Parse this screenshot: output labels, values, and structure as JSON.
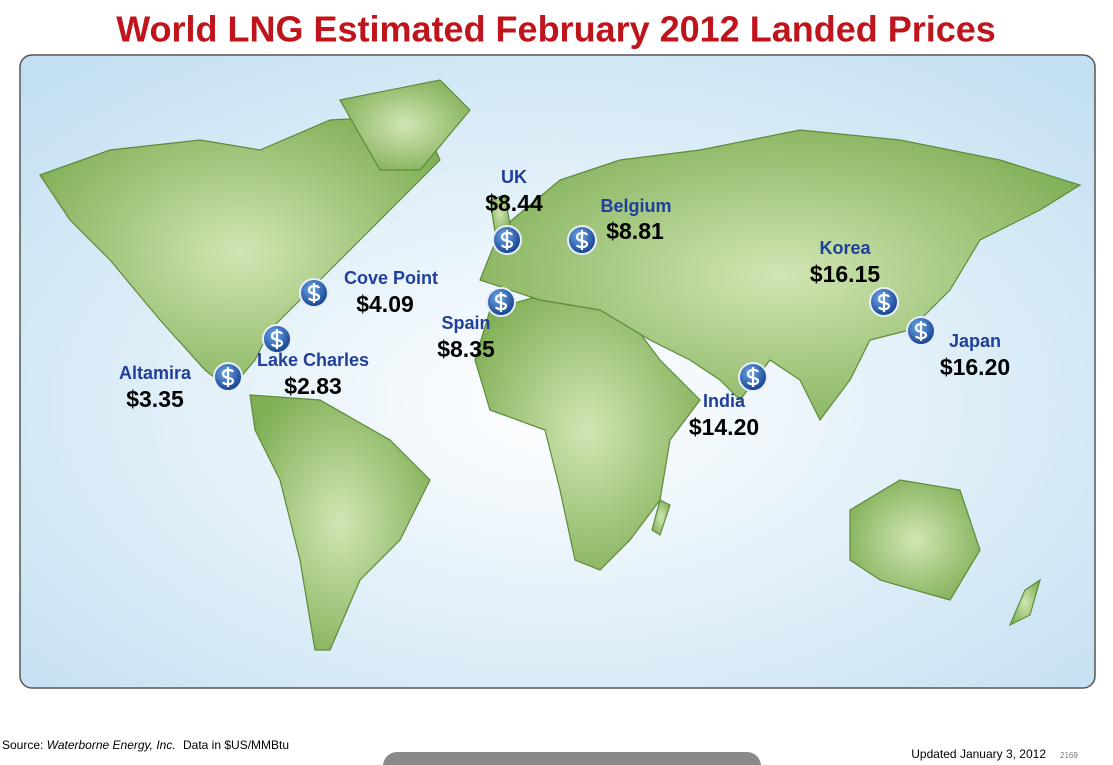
{
  "header": {
    "title": "World LNG Estimated February 2012 Landed Prices"
  },
  "locations": [
    {
      "name": "UK",
      "price": "$8.44"
    },
    {
      "name": "Belgium",
      "price": "$8.81"
    },
    {
      "name": "Cove Point",
      "price": "$4.09"
    },
    {
      "name": "Spain",
      "price": "$8.35"
    },
    {
      "name": "Lake Charles",
      "price": "$2.83"
    },
    {
      "name": "Altamira",
      "price": "$3.35"
    },
    {
      "name": "India",
      "price": "$14.20"
    },
    {
      "name": "Korea",
      "price": "$16.15"
    },
    {
      "name": "Japan",
      "price": "$16.20"
    }
  ],
  "footer": {
    "source_label": "Source:",
    "source_name": "Waterborne Energy, Inc.",
    "units": "Data in $US/MMBtu",
    "updated": "Updated January 3, 2012",
    "slide_number": "2169"
  }
}
